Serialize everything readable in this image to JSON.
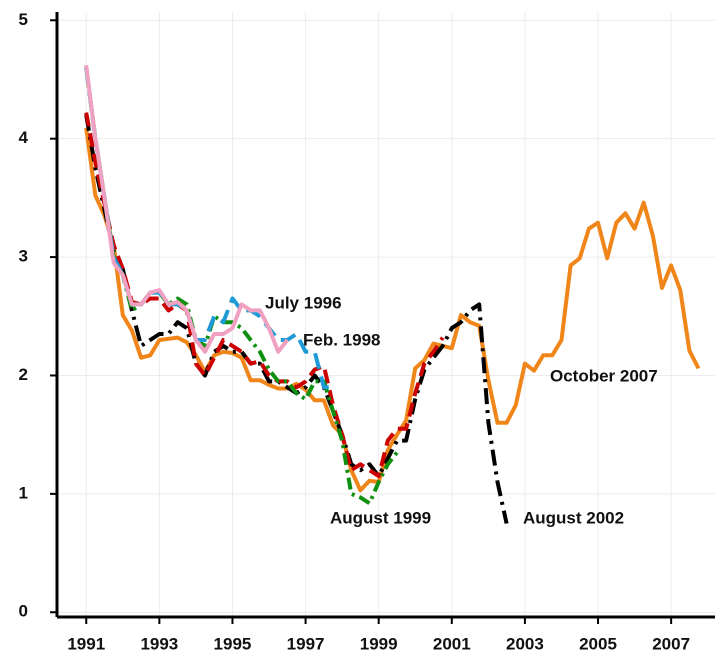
{
  "chart_data": {
    "type": "line",
    "x": [
      1991,
      1991.25,
      1991.5,
      1991.75,
      1992,
      1992.25,
      1992.5,
      1992.75,
      1993,
      1993.25,
      1993.5,
      1993.75,
      1994,
      1994.25,
      1994.5,
      1994.75,
      1995,
      1995.25,
      1995.5,
      1995.75,
      1996,
      1996.25,
      1996.5,
      1996.75,
      1997,
      1997.25,
      1997.5,
      1997.75,
      1998,
      1998.25,
      1998.5,
      1998.75,
      1999,
      1999.25,
      1999.5,
      1999.75,
      2000,
      2000.25,
      2000.5,
      2000.75,
      2001,
      2001.25,
      2001.5,
      2001.75,
      2002,
      2002.25,
      2002.5,
      2002.75,
      2003,
      2003.25,
      2003.5,
      2003.75,
      2004,
      2004.25,
      2004.5,
      2004.75,
      2005,
      2005.25,
      2005.5,
      2005.75,
      2006,
      2006.25,
      2006.5,
      2006.75,
      2007,
      2007.25,
      2007.5,
      2007.75
    ],
    "series": [
      {
        "name": "October 2007",
        "color": "#f08519",
        "values": [
          4.09,
          3.52,
          3.35,
          3.1,
          2.51,
          2.38,
          2.15,
          2.17,
          2.3,
          2.31,
          2.32,
          2.28,
          2.17,
          2.03,
          2.17,
          2.2,
          2.19,
          2.15,
          1.96,
          1.96,
          1.92,
          1.89,
          1.89,
          1.93,
          1.88,
          1.79,
          1.79,
          1.58,
          1.5,
          1.2,
          1.03,
          1.11,
          1.1,
          1.37,
          1.5,
          1.62,
          2.06,
          2.13,
          2.27,
          2.25,
          2.23,
          2.51,
          2.45,
          2.42,
          1.96,
          1.6,
          1.6,
          1.75,
          2.1,
          2.04,
          2.17,
          2.17,
          2.3,
          2.93,
          2.99,
          3.24,
          3.29,
          2.99,
          3.29,
          3.37,
          3.24,
          3.46,
          3.18,
          2.74,
          2.93,
          2.72,
          2.21,
          2.06
        ]
      },
      {
        "name": "August 2002",
        "color": "#000000",
        "values": [
          4.2,
          3.75,
          3.4,
          3.05,
          2.9,
          2.55,
          2.25,
          2.3,
          2.35,
          2.35,
          2.45,
          2.4,
          2.1,
          2.0,
          2.2,
          2.25,
          2.2,
          2.2,
          2.1,
          2.1,
          1.95,
          1.95,
          1.9,
          1.85,
          1.9,
          2.0,
          1.9,
          1.7,
          1.5,
          1.25,
          1.2,
          1.25,
          1.15,
          1.3,
          1.45,
          1.45,
          1.8,
          2.05,
          2.15,
          2.25,
          2.4,
          2.45,
          2.55,
          2.6,
          1.6,
          1.1,
          0.75,
          null,
          null,
          null,
          null,
          null,
          null,
          null,
          null,
          null,
          null,
          null,
          null,
          null,
          null,
          null,
          null,
          null,
          null,
          null,
          null,
          null
        ]
      },
      {
        "color": "#cc0000",
        "values": [
          4.22,
          3.8,
          3.45,
          3.1,
          2.9,
          2.62,
          2.6,
          2.65,
          2.65,
          2.55,
          2.6,
          2.55,
          2.1,
          2.0,
          2.15,
          2.3,
          2.25,
          2.2,
          2.1,
          2.12,
          2.0,
          1.95,
          1.95,
          1.9,
          1.95,
          2.05,
          2.08,
          1.75,
          1.5,
          1.2,
          1.25,
          1.2,
          1.15,
          1.45,
          1.55,
          1.55,
          1.85,
          2.1,
          2.2,
          2.32,
          null,
          null,
          null,
          null,
          null,
          null,
          null,
          null,
          null,
          null,
          null,
          null,
          null,
          null,
          null,
          null,
          null,
          null,
          null,
          null,
          null,
          null,
          null,
          null,
          null,
          null,
          null,
          null
        ]
      },
      {
        "name": "August 1999",
        "color": "#109010",
        "values": [
          4.6,
          4.0,
          3.5,
          3.0,
          2.85,
          2.55,
          2.6,
          2.7,
          2.7,
          2.6,
          2.65,
          2.6,
          2.3,
          2.25,
          2.5,
          2.45,
          2.45,
          2.4,
          2.3,
          2.2,
          2.05,
          1.95,
          1.95,
          1.85,
          1.8,
          1.95,
          1.95,
          1.7,
          1.45,
          1.0,
          0.97,
          0.92,
          1.1,
          1.25,
          1.35,
          null,
          null,
          null,
          null,
          null,
          null,
          null,
          null,
          null,
          null,
          null,
          null,
          null,
          null,
          null,
          null,
          null,
          null,
          null,
          null,
          null,
          null,
          null,
          null,
          null,
          null,
          null,
          null,
          null,
          null,
          null,
          null,
          null
        ]
      },
      {
        "name": "Feb. 1998",
        "color": "#1e9ad6",
        "values": [
          4.6,
          4.0,
          3.5,
          3.0,
          2.85,
          2.6,
          2.6,
          2.7,
          2.7,
          2.6,
          2.6,
          2.55,
          2.3,
          2.3,
          2.5,
          2.45,
          2.65,
          2.55,
          2.55,
          2.5,
          2.4,
          2.3,
          2.3,
          2.35,
          2.2,
          2.2,
          1.9,
          1.9,
          null,
          null,
          null,
          null,
          null,
          null,
          null,
          null,
          null,
          null,
          null,
          null,
          null,
          null,
          null,
          null,
          null,
          null,
          null,
          null,
          null,
          null,
          null,
          null,
          null,
          null,
          null,
          null,
          null,
          null,
          null,
          null,
          null,
          null,
          null,
          null,
          null,
          null,
          null,
          null
        ]
      },
      {
        "name": "July 1996",
        "color": "#f0a0c0",
        "values": [
          4.62,
          4.0,
          3.5,
          2.95,
          2.85,
          2.6,
          2.6,
          2.7,
          2.72,
          2.6,
          2.62,
          2.55,
          2.3,
          2.2,
          2.35,
          2.35,
          2.4,
          2.6,
          2.55,
          2.55,
          2.4,
          2.2,
          2.3,
          null,
          null,
          null,
          null,
          null,
          null,
          null,
          null,
          null,
          null,
          null,
          null,
          null,
          null,
          null,
          null,
          null,
          null,
          null,
          null,
          null,
          null,
          null,
          null,
          null,
          null,
          null,
          null,
          null,
          null,
          null,
          null,
          null,
          null,
          null,
          null,
          null,
          null,
          null,
          null,
          null,
          null,
          null,
          null,
          null
        ]
      }
    ],
    "xlim": [
      1990.2,
      2008.2
    ],
    "xticks": [
      1991,
      1993,
      1995,
      1997,
      1999,
      2001,
      2003,
      2005,
      2007
    ],
    "ylim": [
      -0.04,
      5.07
    ],
    "yticks": [
      0,
      1,
      2,
      3,
      4,
      5
    ],
    "grid": true
  }
}
